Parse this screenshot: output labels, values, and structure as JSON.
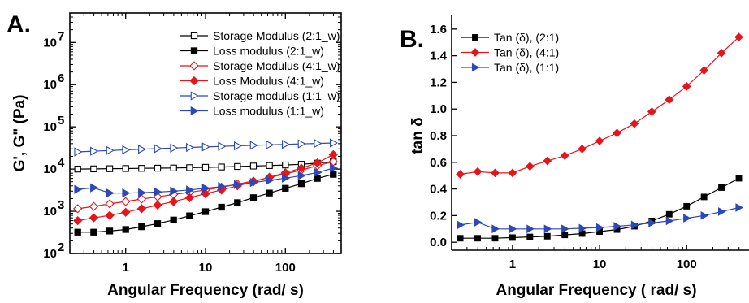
{
  "chart_data": [
    {
      "panel_label": "A.",
      "type": "line",
      "xlabel": "Angular Frequency (rad/ s)",
      "ylabel": "G', G\" (Pa)",
      "xscale": "log",
      "yscale": "log",
      "xlim": [
        0.2,
        500
      ],
      "ylim": [
        100,
        50000000
      ],
      "xticks": [
        1,
        10,
        100
      ],
      "xtick_labels": [
        "1",
        "10",
        "100"
      ],
      "yticks": [
        100,
        1000,
        10000,
        100000,
        1000000,
        10000000
      ],
      "ytick_labels": [
        [
          "10",
          "2"
        ],
        [
          "10",
          "3"
        ],
        [
          "10",
          "4"
        ],
        [
          "10",
          "5"
        ],
        [
          "10",
          "6"
        ],
        [
          "10",
          "7"
        ]
      ],
      "legend_position": "top-right",
      "x": [
        0.251,
        0.398,
        0.631,
        1.0,
        1.585,
        2.512,
        3.981,
        6.31,
        10.0,
        15.85,
        25.12,
        39.81,
        63.1,
        100.0,
        158.5,
        251.2,
        398.1
      ],
      "series": [
        {
          "name": "Storage Modulus (2:1_w)",
          "color": "#000000",
          "marker": "square",
          "filled": false,
          "values": [
            10000,
            10100,
            10200,
            10300,
            10400,
            10500,
            10600,
            10800,
            11000,
            11200,
            11500,
            11800,
            12100,
            12500,
            13000,
            13800,
            15000
          ]
        },
        {
          "name": "Loss modulus (2:1_w)",
          "color": "#000000",
          "marker": "square",
          "filled": true,
          "values": [
            320,
            320,
            340,
            370,
            430,
            510,
            620,
            780,
            980,
            1250,
            1600,
            2100,
            2700,
            3500,
            4500,
            6000,
            7500
          ]
        },
        {
          "name": "Storage Modulus (4:1_w)",
          "color": "#e8141b",
          "marker": "diamond",
          "filled": false,
          "values": [
            1150,
            1300,
            1500,
            1700,
            1950,
            2200,
            2500,
            2800,
            3200,
            3700,
            4400,
            5200,
            6300,
            7700,
            9500,
            12000,
            15000
          ]
        },
        {
          "name": "Loss Modulus (4:1_w)",
          "color": "#e8141b",
          "marker": "diamond",
          "filled": true,
          "values": [
            600,
            700,
            800,
            950,
            1150,
            1400,
            1700,
            2100,
            2600,
            3200,
            4000,
            5000,
            6400,
            8200,
            10500,
            14000,
            22000
          ]
        },
        {
          "name": "Storage modulus  (1:1_w)",
          "color": "#2d48b8",
          "marker": "triangle-right",
          "filled": false,
          "values": [
            25500,
            26500,
            27500,
            28500,
            29500,
            30500,
            31500,
            32500,
            33500,
            34500,
            35500,
            36500,
            37500,
            38500,
            39500,
            40500,
            41500
          ]
        },
        {
          "name": "Loss modulus (1:1_w)",
          "color": "#2d48b8",
          "marker": "triangle-right",
          "filled": true,
          "values": [
            3300,
            3600,
            2700,
            2700,
            2750,
            2850,
            3000,
            3200,
            3500,
            3850,
            4300,
            4800,
            5400,
            6100,
            7000,
            8300,
            10500
          ]
        }
      ]
    },
    {
      "panel_label": "B.",
      "type": "line",
      "xlabel": "Angular Frequency ( rad/ s)",
      "ylabel": "tan δ",
      "xscale": "log",
      "yscale": "linear",
      "xlim": [
        0.2,
        420
      ],
      "ylim": [
        -0.06,
        1.66
      ],
      "xticks": [
        1,
        10,
        100
      ],
      "xtick_labels": [
        "1",
        "10",
        "100"
      ],
      "yticks": [
        0.0,
        0.2,
        0.4,
        0.6,
        0.8,
        1.0,
        1.2,
        1.4,
        1.6
      ],
      "ytick_labels": [
        "0.0",
        "0.2",
        "0.4",
        "0.6",
        "0.8",
        "1.0",
        "1.2",
        "1.4",
        "1.6"
      ],
      "legend_position": "top-left",
      "x": [
        0.251,
        0.398,
        0.631,
        1.0,
        1.585,
        2.512,
        3.981,
        6.31,
        10.0,
        15.85,
        25.12,
        39.81,
        63.1,
        100.0,
        158.5,
        251.2,
        398.1
      ],
      "series": [
        {
          "name": "Tan (δ), (2:1)",
          "color": "#000000",
          "marker": "square",
          "filled": true,
          "values": [
            0.03,
            0.03,
            0.03,
            0.035,
            0.04,
            0.045,
            0.055,
            0.065,
            0.08,
            0.095,
            0.12,
            0.16,
            0.21,
            0.27,
            0.34,
            0.41,
            0.48
          ]
        },
        {
          "name": "Tan (δ), (4:1)",
          "color": "#e8141b",
          "marker": "diamond",
          "filled": true,
          "values": [
            0.51,
            0.53,
            0.52,
            0.52,
            0.57,
            0.61,
            0.65,
            0.7,
            0.76,
            0.82,
            0.89,
            0.98,
            1.07,
            1.17,
            1.29,
            1.42,
            1.54
          ]
        },
        {
          "name": "Tan (δ), (1:1)",
          "color": "#2d48b8",
          "marker": "triangle-right",
          "filled": true,
          "values": [
            0.13,
            0.15,
            0.1,
            0.1,
            0.1,
            0.1,
            0.1,
            0.105,
            0.11,
            0.12,
            0.13,
            0.145,
            0.16,
            0.18,
            0.2,
            0.23,
            0.26
          ]
        }
      ]
    }
  ]
}
